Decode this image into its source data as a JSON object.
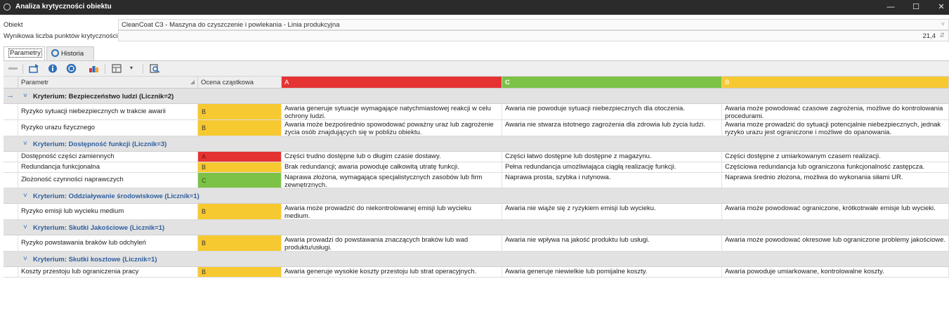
{
  "window": {
    "title": "Analiza krytyczności obiektu"
  },
  "colors": {
    "A": "#e53333",
    "B": "#f7c930",
    "C": "#7cc246"
  },
  "fields": {
    "object_label": "Obiekt",
    "object_value": "CleanCoat C3 - Maszyna do czyszczenie i powlekania - Linia produkcyjna",
    "score_label": "Wynikowa liczba punktów krytyczności",
    "score_value": "21,4"
  },
  "tabs": [
    {
      "label": "Parametry",
      "active": true
    },
    {
      "label": "Historia",
      "active": false,
      "icon": "history-icon"
    }
  ],
  "columns": {
    "param": "Parametr",
    "score": "Ocena cząstkowa",
    "a": "A",
    "c": "C",
    "b": "B"
  },
  "groups": [
    {
      "title": "Kryterium: Bezpieczeństwo ludzi (Licznik=2)",
      "rows": [
        {
          "param": "Ryzyko sytuacji niebezpiecznych w trakcie awarii",
          "score": "B",
          "a": "Awaria generuje sytuacje wymagające natychmiastowej reakcji w celu ochrony ludzi.",
          "c": "Awaria nie powoduje sytuacji niebezpiecznych dla otoczenia.",
          "b": "Awaria może powodować czasowe zagrożenia, możliwe do kontrolowania procedurami."
        },
        {
          "param": "Ryzyko urazu fizycznego",
          "score": "B",
          "a": "Awaria może bezpośrednio spowodować poważny uraz lub zagrożenie życia osób znajdujących się w pobliżu obiektu.",
          "c": "Awaria nie stwarza istotnego zagrożenia dla zdrowia lub życia ludzi.",
          "b": "Awaria może prowadzić do sytuacji potencjalnie niebezpiecznych, jednak ryzyko urazu jest ograniczone i możliwe do opanowania."
        }
      ]
    },
    {
      "title": "Kryterium: Dostępność funkcji (Licznik=3)",
      "rows": [
        {
          "param": "Dostępność części zamiennych",
          "score": "A",
          "a": "Części trudno dostępne lub o długim czasie dostawy.",
          "c": "Części łatwo dostępne lub dostępne z magazynu.",
          "b": "Części dostępne z umiarkowanym czasem realizacji."
        },
        {
          "param": "Redundancja funkcjonalna",
          "score": "B",
          "a": "Brak redundancji; awaria powoduje całkowitą utratę funkcji.",
          "c": "Pełna redundancja umożliwiająca ciągłą realizację funkcji.",
          "b": "Częściowa redundancja lub ograniczona funkcjonalność zastępcza."
        },
        {
          "param": "Złożoność czynności naprawczych",
          "score": "C",
          "a": "Naprawa złożona, wymagająca specjalistycznych zasobów lub firm zewnętrznych.",
          "c": "Naprawa prosta, szybka i rutynowa.",
          "b": "Naprawa średnio złożona, możliwa do wykonania siłami UR."
        }
      ]
    },
    {
      "title": "Kryterium: Oddziaływanie środowiskowe (Licznik=1)",
      "rows": [
        {
          "param": "Ryzyko emisji lub wycieku medium",
          "score": "B",
          "a": "Awaria może prowadzić do niekontrolowanej emisji lub wycieku medium.",
          "c": "Awaria nie wiąże się z ryzykiem emisji lub wycieku.",
          "b": "Awaria może powodować ograniczone, krótkotrwałe emisje lub wycieki."
        }
      ]
    },
    {
      "title": "Kryterium: Skutki Jakościowe (Licznik=1)",
      "rows": [
        {
          "param": "Ryzyko powstawania braków lub odchyleń",
          "score": "B",
          "a": "Awaria prowadzi do powstawania znaczących braków lub wad produktu/usługi.",
          "c": "Awaria nie wpływa na jakość produktu lub usługi.",
          "b": "Awaria może powodować okresowe lub ograniczone problemy jakościowe."
        }
      ]
    },
    {
      "title": "Kryterium: Skutki kosztowe (Licznik=1)",
      "rows": [
        {
          "param": "Koszty przestoju lub ograniczenia pracy",
          "score": "B",
          "a": "Awaria generuje wysokie koszty przestoju lub strat operacyjnych.",
          "c": "Awaria generuje niewielkie lub pomijalne koszty.",
          "b": "Awaria powoduje umiarkowane, kontrolowalne koszty."
        }
      ]
    }
  ]
}
